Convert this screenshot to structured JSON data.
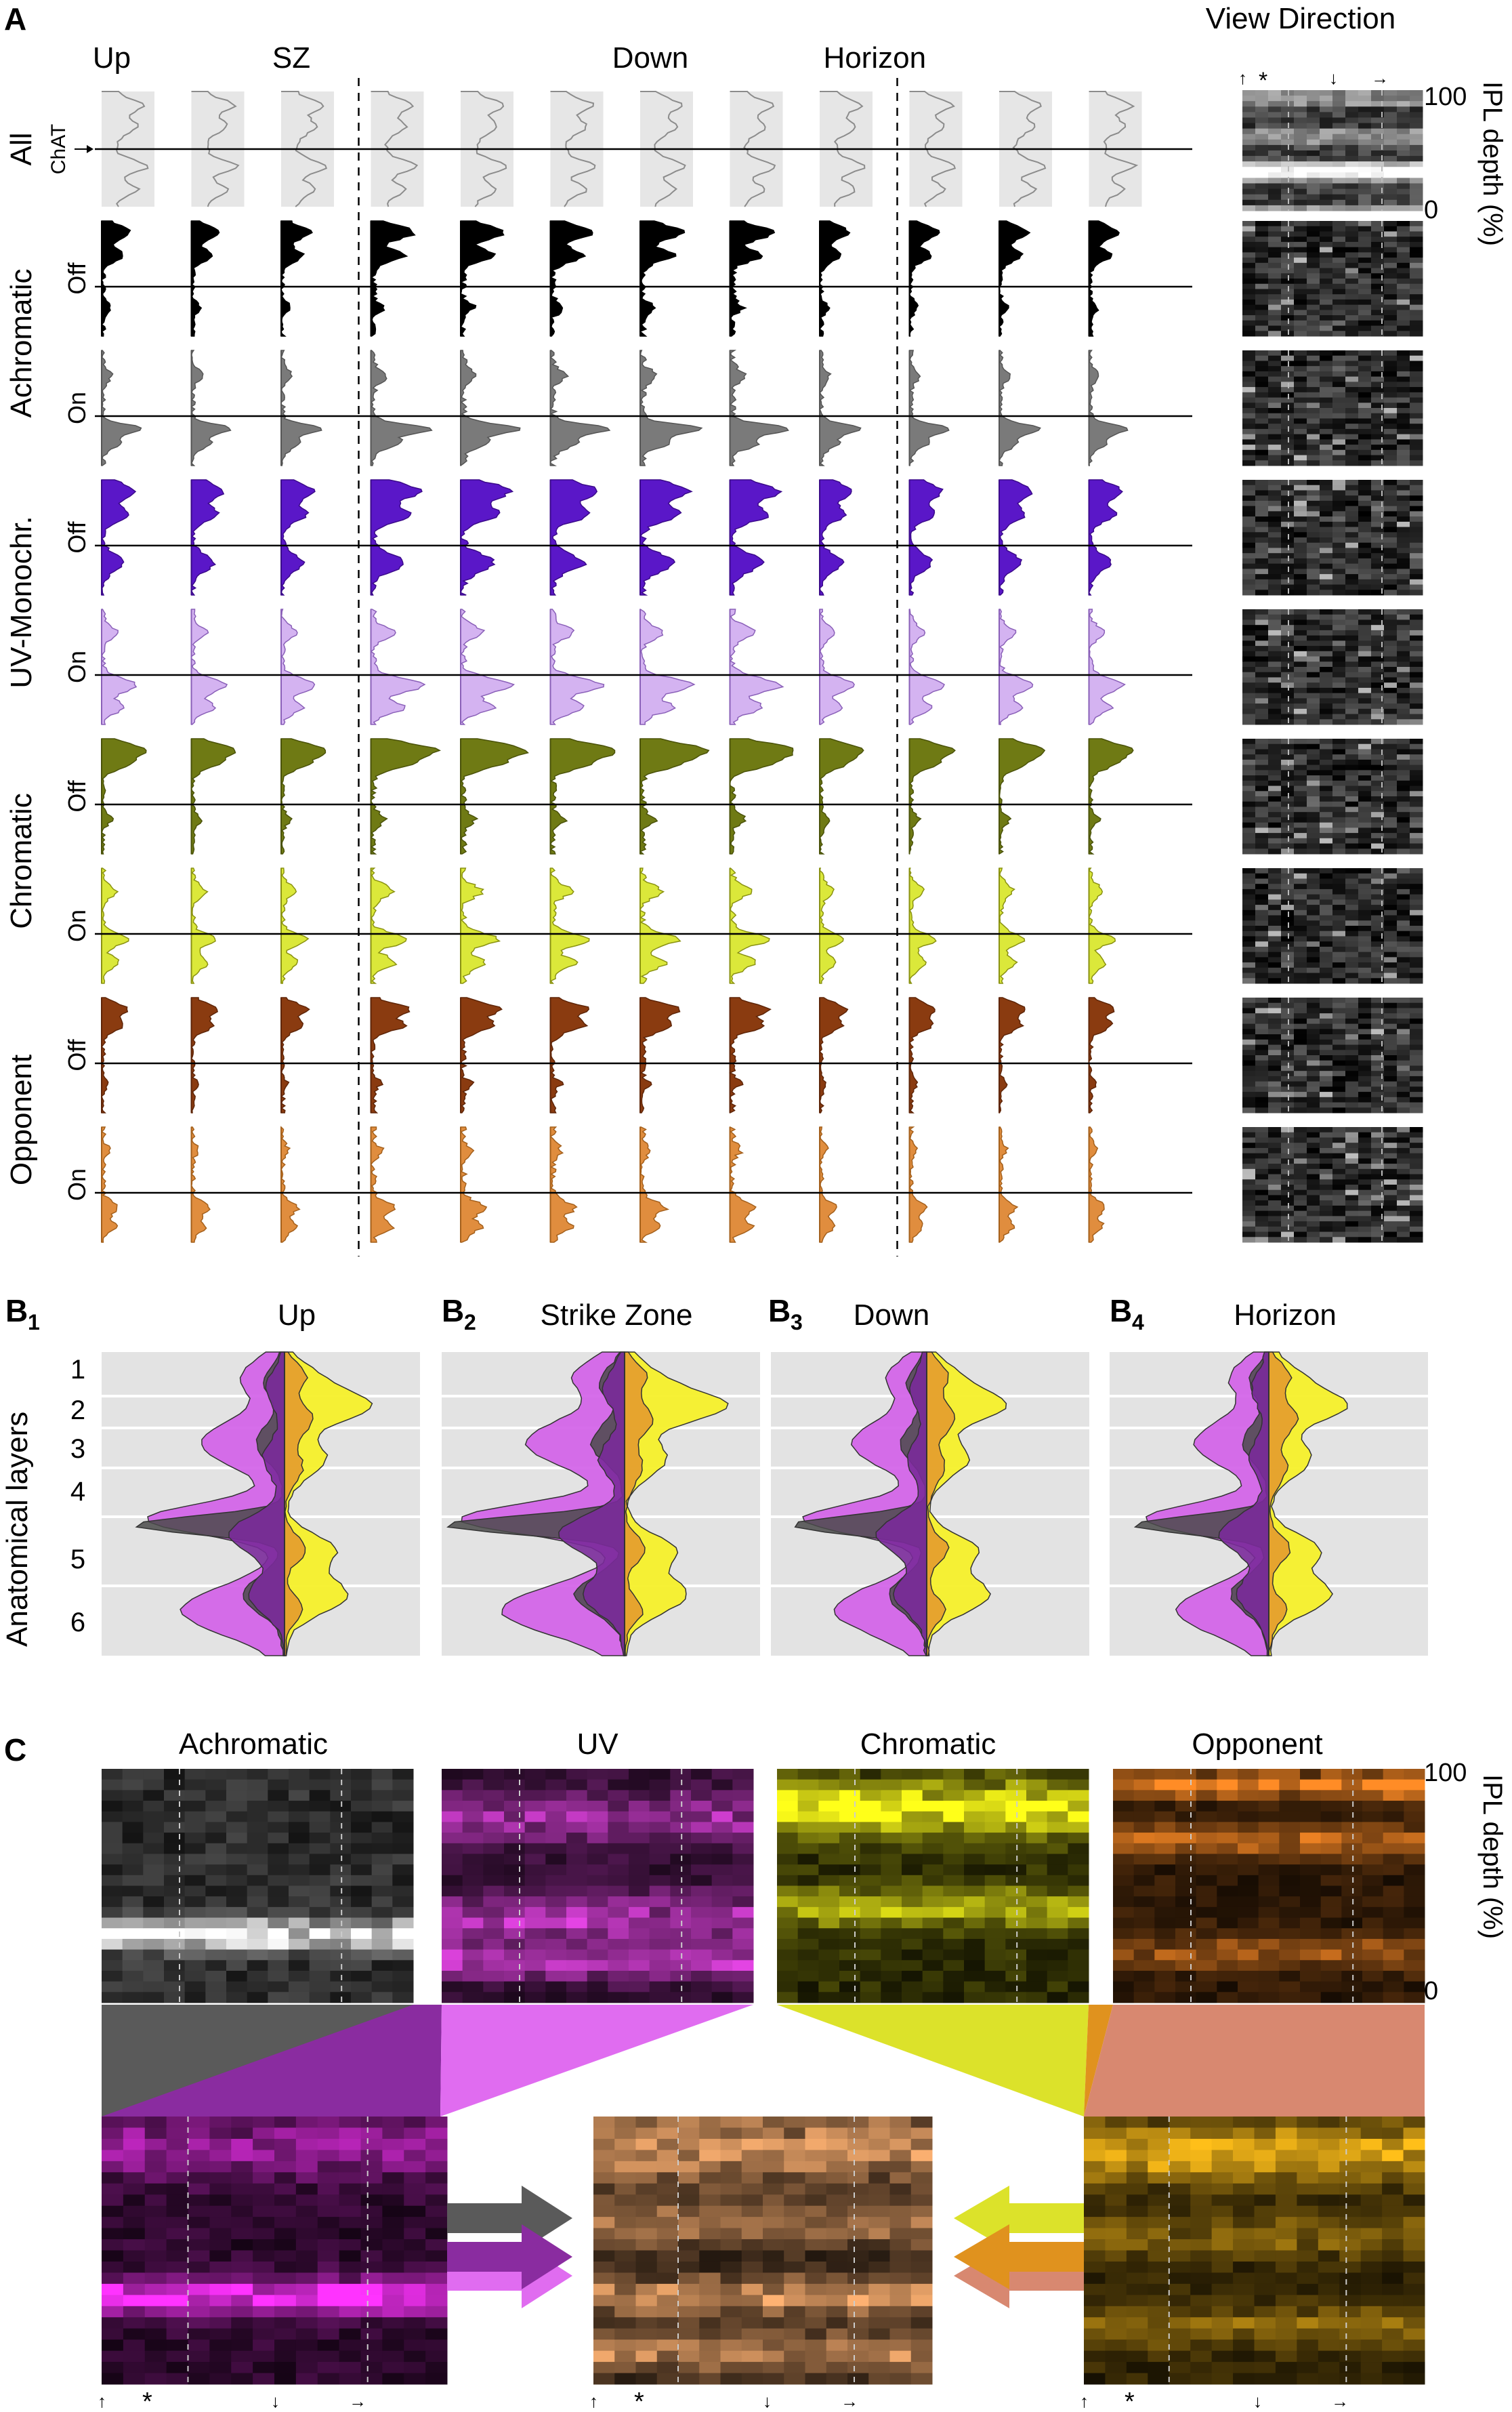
{
  "figure": {
    "panels": {
      "A": "A",
      "B1": "B",
      "B2": "B",
      "B3": "B",
      "B4": "B",
      "C": "C",
      "B1_sub": "1",
      "B2_sub": "2",
      "B3_sub": "3",
      "B4_sub": "4"
    },
    "panel_a": {
      "view_direction_title": "View Direction",
      "col_headers": [
        {
          "label": "Up",
          "col": 0
        },
        {
          "label": "SZ",
          "col": 2
        },
        {
          "label": "Down",
          "col": 6
        },
        {
          "label": "Horizon",
          "col": 8.5
        }
      ],
      "chat_label": "ChAT",
      "row_groups": [
        {
          "label": "All",
          "rows": [
            0
          ]
        },
        {
          "label": "Achromatic",
          "rows": [
            1,
            2
          ]
        },
        {
          "label": "UV-Monochr.",
          "rows": [
            3,
            4
          ]
        },
        {
          "label": "Chromatic",
          "rows": [
            5,
            6
          ]
        },
        {
          "label": "Opponent",
          "rows": [
            7,
            8
          ]
        }
      ],
      "rows": [
        {
          "id": "all",
          "sublabel": "",
          "color": "#e6e6e6",
          "stroke": "#8c8c8c"
        },
        {
          "id": "achromatic-off",
          "sublabel": "Off",
          "color": "#000000",
          "stroke": "#000000"
        },
        {
          "id": "achromatic-on",
          "sublabel": "On",
          "color": "#7a7a7a",
          "stroke": "#555555"
        },
        {
          "id": "uv-off",
          "sublabel": "Off",
          "color": "#5a17c8",
          "stroke": "#3b0a8a"
        },
        {
          "id": "uv-on",
          "sublabel": "On",
          "color": "#d4b3f1",
          "stroke": "#8a60b8"
        },
        {
          "id": "chromatic-off",
          "sublabel": "Off",
          "color": "#6f7a14",
          "stroke": "#4a520a"
        },
        {
          "id": "chromatic-on",
          "sublabel": "On",
          "color": "#dbe83a",
          "stroke": "#8a9212"
        },
        {
          "id": "opponent-off",
          "sublabel": "Off",
          "color": "#8a3b10",
          "stroke": "#5e2508"
        },
        {
          "id": "opponent-on",
          "sublabel": "On",
          "color": "#e08d3e",
          "stroke": "#a4601c"
        }
      ],
      "n_columns": 12,
      "dashed_after_columns": [
        2,
        8
      ],
      "ipl_axis": {
        "label": "IPL depth (%)",
        "ticks": [
          "100",
          "0"
        ]
      }
    },
    "panel_b": {
      "y_label": "Anatomical layers",
      "layers": [
        "1",
        "2",
        "3",
        "4",
        "5",
        "6"
      ],
      "plots": [
        {
          "title": "Up"
        },
        {
          "title": "Strike Zone"
        },
        {
          "title": "Down"
        },
        {
          "title": "Horizon"
        }
      ],
      "colors": {
        "dark": "#4a4a4a",
        "uv": "#d25ee8",
        "purple": "#7a2a9a",
        "yellow": "#f5f02a",
        "orange": "#e3962e",
        "salmon": "#d98872"
      }
    },
    "panel_c": {
      "titles": [
        "Achromatic",
        "UV",
        "Chromatic",
        "Opponent"
      ],
      "ipl_axis": {
        "label": "IPL depth (%)",
        "ticks": [
          "100",
          "0"
        ]
      },
      "colors": {
        "achromatic": "#5a5a5a",
        "uv": "#e06cf0",
        "purple": "#8a2ca0",
        "chromatic": "#dce22a",
        "orange": "#e0921e",
        "salmon": "#d88870"
      },
      "direction_marker": "*"
    }
  }
}
